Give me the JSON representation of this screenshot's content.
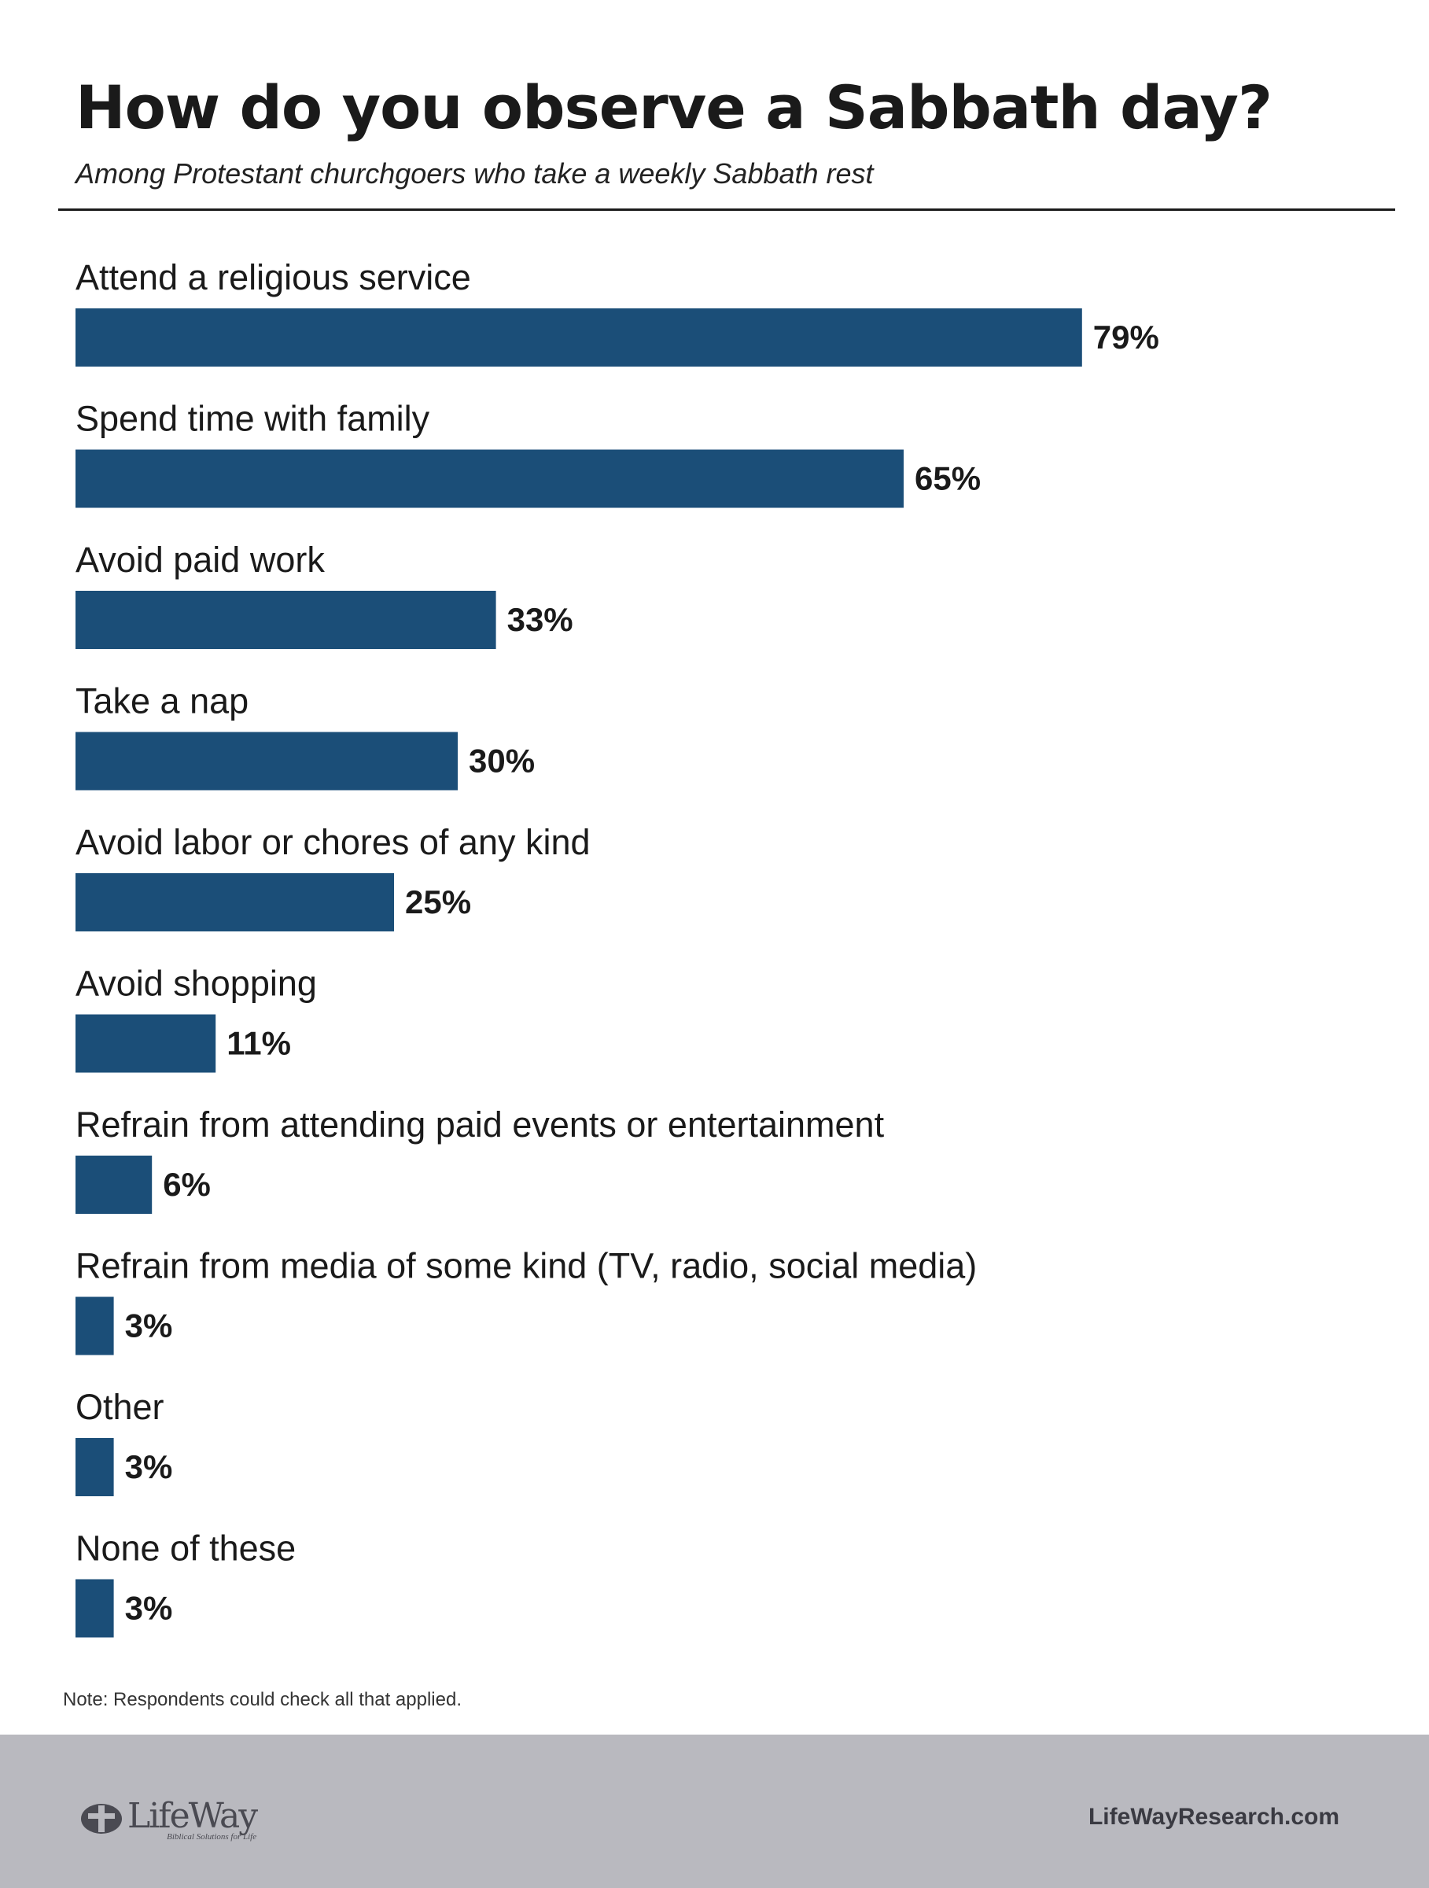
{
  "header": {
    "title": "How do you observe a Sabbath day?",
    "subtitle": "Among Protestant churchgoers who take a weekly Sabbath rest"
  },
  "chart_data": {
    "type": "bar",
    "orientation": "horizontal",
    "categories": [
      "Attend a religious service",
      "Spend time with family",
      "Avoid paid work",
      "Take a nap",
      "Avoid labor or chores of any kind",
      "Avoid shopping",
      "Refrain from attending paid events or entertainment",
      "Refrain from media of some kind (TV, radio, social media)",
      "Other",
      "None of these"
    ],
    "values": [
      79,
      65,
      33,
      30,
      25,
      11,
      6,
      3,
      3,
      3
    ],
    "value_labels": [
      "79%",
      "65%",
      "33%",
      "30%",
      "25%",
      "11%",
      "6%",
      "3%",
      "3%",
      "3%"
    ],
    "unit": "%",
    "bar_color": "#1b4e78",
    "grid": false,
    "legend": false
  },
  "note": "Note: Respondents could check all that applied.",
  "footer": {
    "logo_text": "LifeWay",
    "logo_tagline": "Biblical Solutions for Life",
    "site": "LifeWayResearch.com",
    "background_color": "#b9b9bf"
  }
}
